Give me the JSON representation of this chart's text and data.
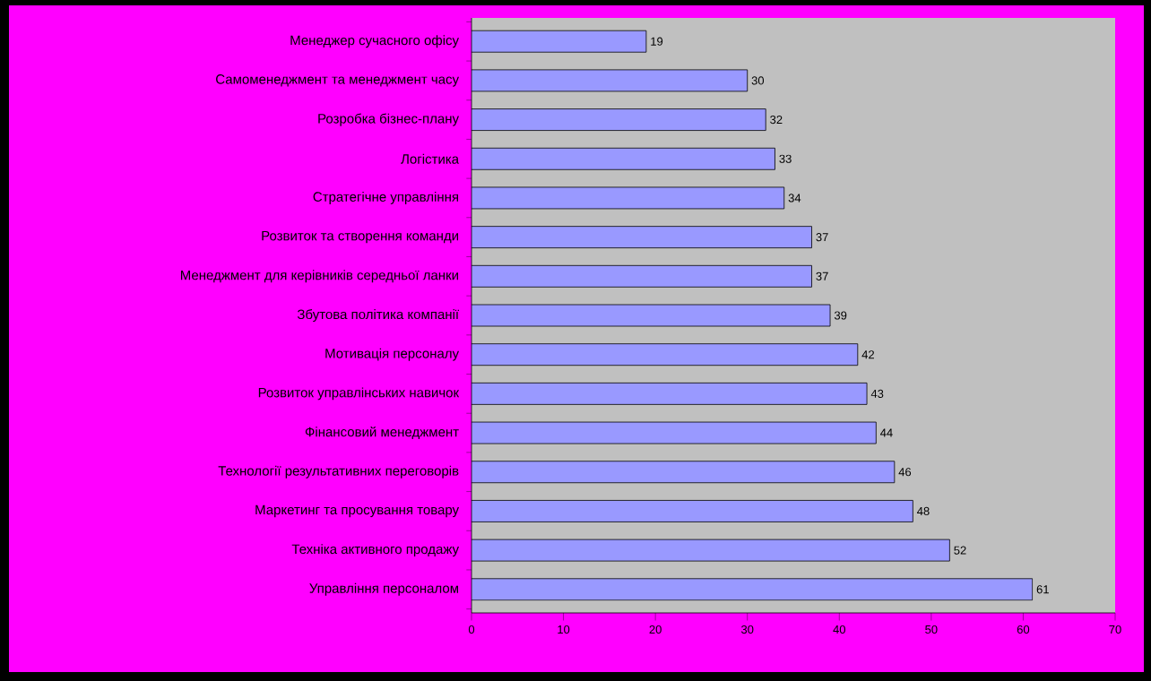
{
  "chart_data": {
    "type": "bar",
    "orientation": "horizontal",
    "categories": [
      "Менеджер сучасного офісу",
      "Самоменеджмент та менеджмент часу",
      "Розробка бізнес-плану",
      "Логістика",
      "Стратегічне управління",
      "Розвиток та створення команди",
      "Менеджмент для керівників середньої ланки",
      "Збутова політика компанії",
      "Мотивація персоналу",
      "Розвиток управлінських навичок",
      "Фінансовий менеджмент",
      "Технології результативних переговорів",
      "Маркетинг та просування товару",
      "Техніка активного продажу",
      "Управління персоналом"
    ],
    "values": [
      19,
      30,
      32,
      33,
      34,
      37,
      37,
      39,
      42,
      43,
      44,
      46,
      48,
      52,
      61
    ],
    "color": "#9999ff",
    "data_labels": true,
    "grid": false,
    "xlim": [
      0,
      70
    ],
    "xticks": [
      0,
      10,
      20,
      30,
      40,
      50,
      60,
      70
    ]
  }
}
